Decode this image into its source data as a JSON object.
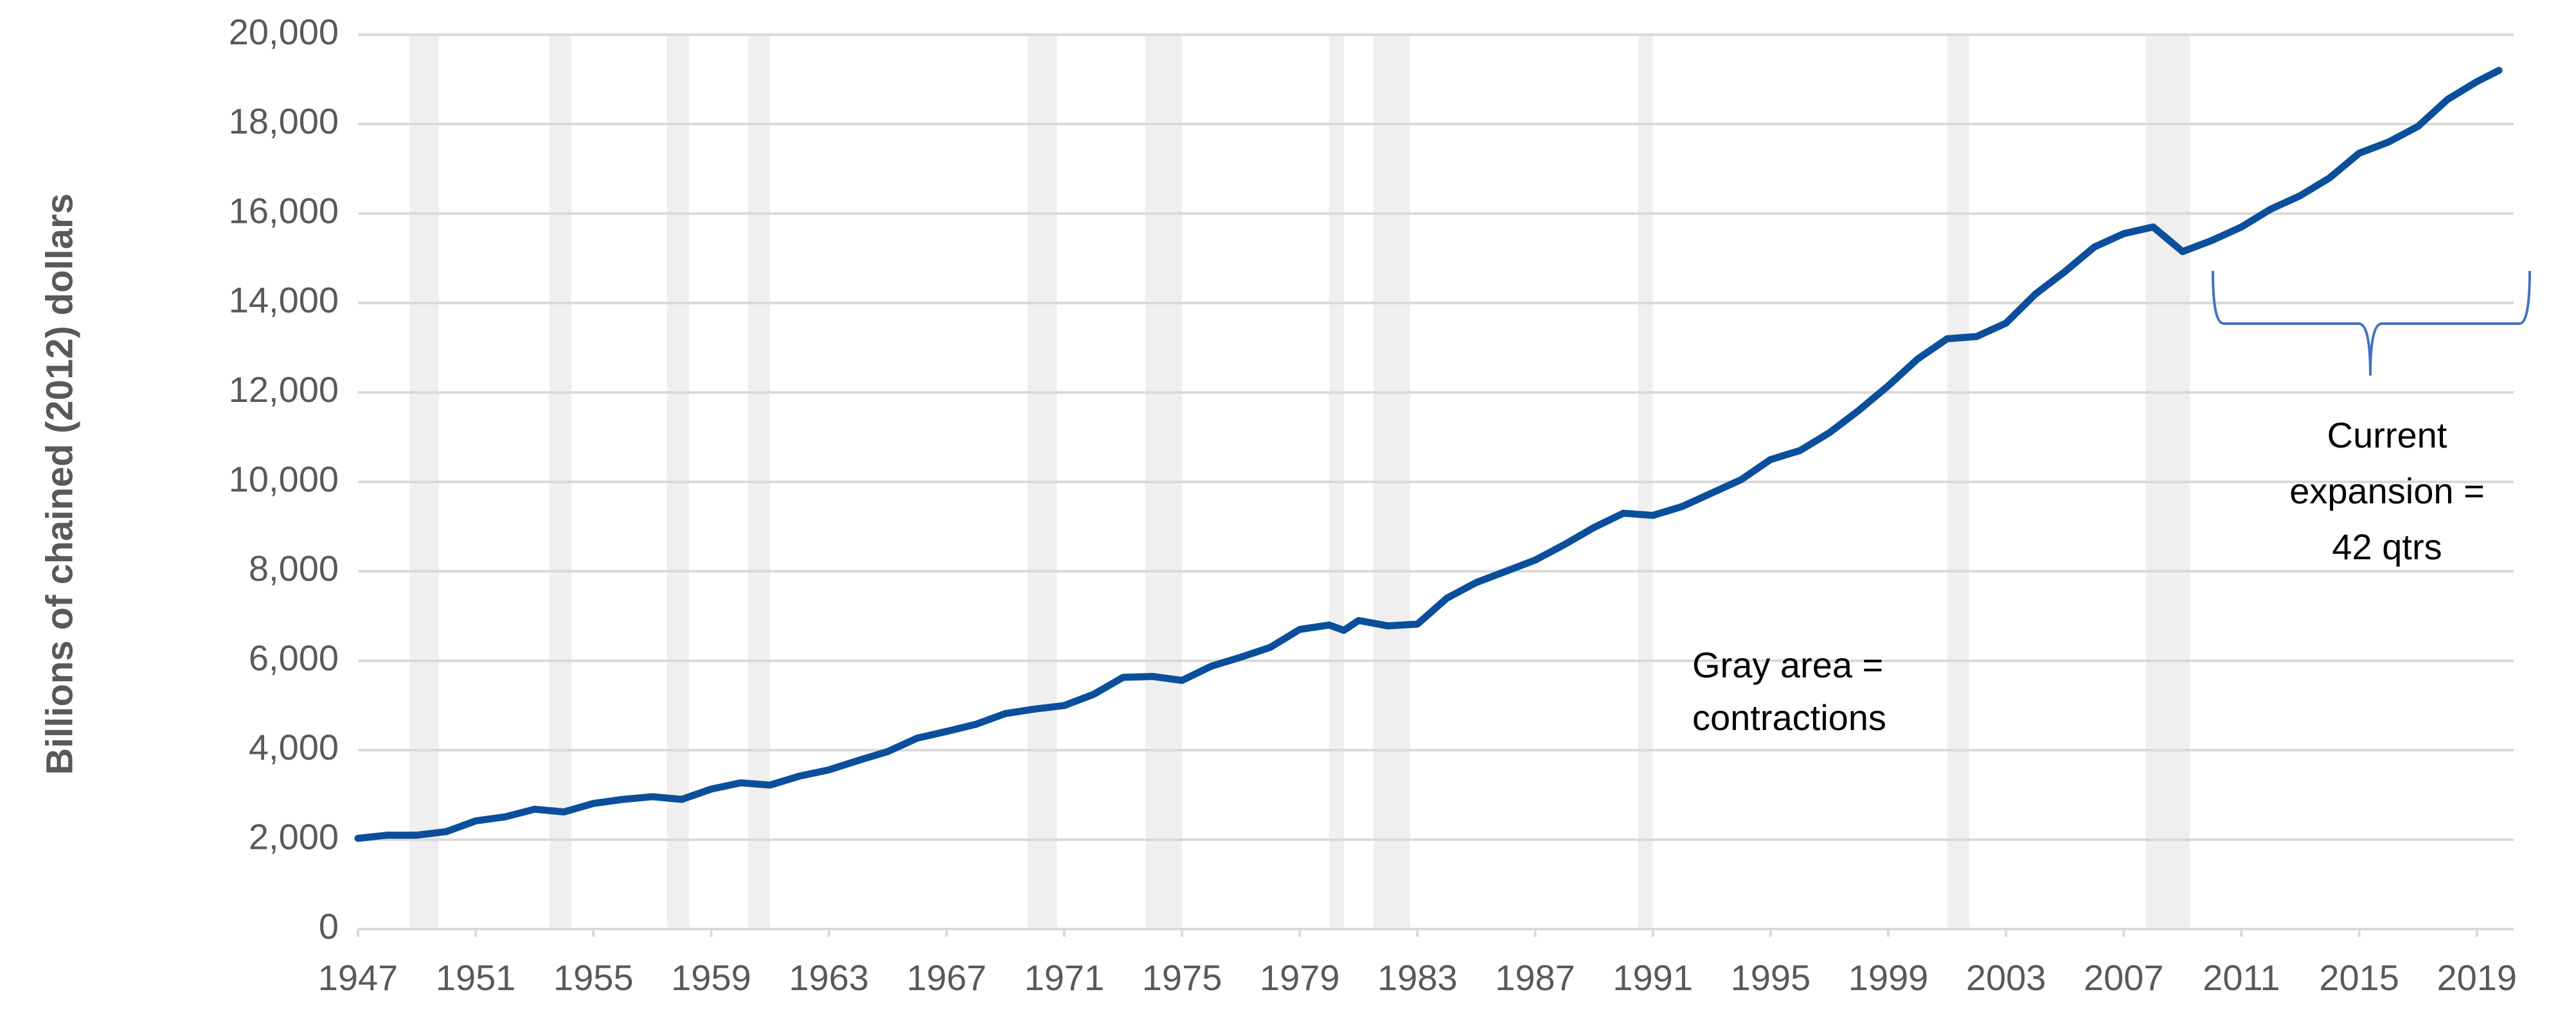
{
  "chart_data": {
    "type": "line",
    "y_label": "Billions of chained (2012) dollars",
    "x": [
      1947,
      1948,
      1949,
      1950,
      1951,
      1952,
      1953,
      1954,
      1955,
      1956,
      1957,
      1958,
      1959,
      1960,
      1961,
      1962,
      1963,
      1964,
      1965,
      1966,
      1967,
      1968,
      1969,
      1970,
      1971,
      1972,
      1973,
      1974,
      1975,
      1976,
      1977,
      1978,
      1979,
      1980,
      1980.5,
      1981,
      1982,
      1983,
      1984,
      1985,
      1986,
      1987,
      1988,
      1989,
      1990,
      1991,
      1992,
      1993,
      1994,
      1995,
      1996,
      1997,
      1998,
      1999,
      2000,
      2001,
      2002,
      2003,
      2004,
      2005,
      2006,
      2007,
      2008,
      2009,
      2010,
      2011,
      2012,
      2013,
      2014,
      2015,
      2016,
      2017,
      2018,
      2019,
      2019.75
    ],
    "values": [
      2030,
      2100,
      2100,
      2180,
      2420,
      2510,
      2680,
      2620,
      2810,
      2900,
      2960,
      2900,
      3130,
      3270,
      3220,
      3420,
      3560,
      3770,
      3970,
      4270,
      4420,
      4580,
      4820,
      4920,
      5000,
      5250,
      5630,
      5650,
      5560,
      5880,
      6080,
      6300,
      6700,
      6800,
      6680,
      6900,
      6780,
      6820,
      7400,
      7750,
      8000,
      8250,
      8600,
      8980,
      9300,
      9250,
      9450,
      9750,
      10050,
      10500,
      10700,
      11100,
      11600,
      12150,
      12750,
      13200,
      13250,
      13550,
      14200,
      14700,
      15250,
      15550,
      15700,
      15150,
      15400,
      15700,
      16100,
      16400,
      16800,
      17350,
      17600,
      17950,
      18550,
      18950,
      19200
    ],
    "color": "#0b4f9c",
    "shaded_periods": [
      [
        1948.75,
        1949.75
      ],
      [
        1953.5,
        1954.25
      ],
      [
        1957.5,
        1958.25
      ],
      [
        1960.25,
        1961.0
      ],
      [
        1969.75,
        1970.75
      ],
      [
        1973.75,
        1975.0
      ],
      [
        1980.0,
        1980.5
      ],
      [
        1981.5,
        1982.75
      ],
      [
        1990.5,
        1991.0
      ],
      [
        2001.0,
        2001.75
      ],
      [
        2007.75,
        2009.25
      ]
    ],
    "shade_color": "#efefef",
    "xlim": [
      1947,
      2020.25
    ],
    "xticks": [
      1947,
      1951,
      1955,
      1959,
      1963,
      1967,
      1971,
      1975,
      1979,
      1983,
      1987,
      1991,
      1995,
      1999,
      2003,
      2007,
      2011,
      2015,
      2019
    ],
    "ylim": [
      0,
      20000
    ],
    "yticks": [
      0,
      {
        "value": 2000,
        "label": "2,000"
      },
      {
        "value": 4000,
        "label": "4,000"
      },
      {
        "value": 6000,
        "label": "6,000"
      },
      {
        "value": 8000,
        "label": "8,000"
      },
      {
        "value": 10000,
        "label": "10,000"
      },
      {
        "value": 12000,
        "label": "12,000"
      },
      {
        "value": 14000,
        "label": "14,000"
      },
      {
        "value": 16000,
        "label": "16,000"
      },
      {
        "value": 18000,
        "label": "18,000"
      },
      {
        "value": 20000,
        "label": "20,000"
      }
    ],
    "grid": true,
    "annotations": [
      [
        "Gray area =",
        "contractions"
      ],
      [
        "Current",
        "expansion =",
        "42 qtrs"
      ]
    ]
  }
}
